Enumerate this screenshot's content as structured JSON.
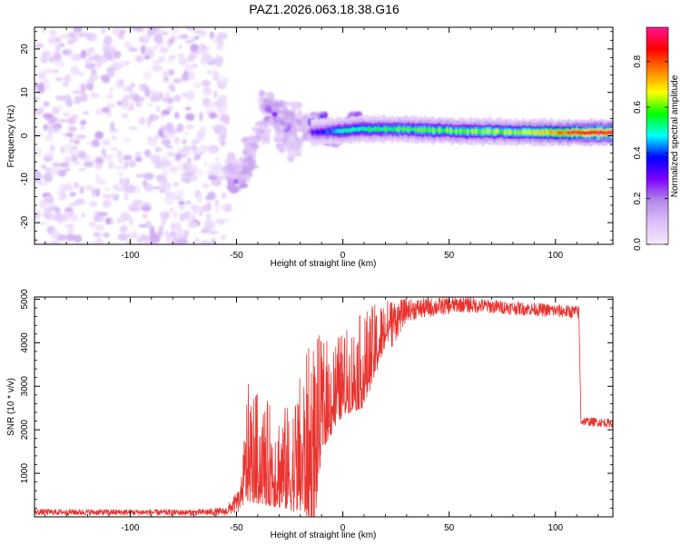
{
  "figure_title": "PAZ1.2026.063.18.38.G16",
  "chart_data": [
    {
      "type": "heatmap",
      "title": "PAZ1.2026.063.18.38.G16",
      "xlabel": "Height of straight line (km)",
      "ylabel": "Frequency (Hz)",
      "xlim": [
        -145,
        127
      ],
      "ylim": [
        -25,
        25
      ],
      "xticks": [
        -100,
        -50,
        0,
        50,
        100
      ],
      "yticks": [
        -20,
        -10,
        0,
        10,
        20
      ],
      "colorbar": {
        "label": "Normalized spectral amplitude",
        "range": [
          0,
          0.95
        ],
        "ticks": [
          0.0,
          0.2,
          0.4,
          0.6,
          0.8
        ],
        "tick_labels": [
          "0.0",
          "0.2",
          "0.4",
          "0.6",
          "0.8"
        ],
        "colors": [
          "#f5e8ff",
          "#dcc1f6",
          "#b48ae9",
          "#7f00ff",
          "#0000ff",
          "#00ffff",
          "#00ff00",
          "#ffff00",
          "#ff8000",
          "#ff0000",
          "#ff1493"
        ]
      },
      "noise_region": {
        "x_from": -145,
        "x_to": -58,
        "freq_from": -25,
        "freq_to": 25,
        "amplitude_range": [
          0.02,
          0.15
        ]
      },
      "transition_region": [
        {
          "x": -50,
          "f": -10.5,
          "a": 0.22
        },
        {
          "x": -46,
          "f": -8,
          "a": 0.16
        },
        {
          "x": -53,
          "f": -7,
          "a": 0.12
        },
        {
          "x": -44,
          "f": -5,
          "a": 0.14
        },
        {
          "x": -42,
          "f": -2,
          "a": 0.13
        },
        {
          "x": -38,
          "f": 1,
          "a": 0.12
        },
        {
          "x": -36,
          "f": 7.5,
          "a": 0.14
        },
        {
          "x": -32,
          "f": 5,
          "a": 0.26
        },
        {
          "x": -28,
          "f": 3,
          "a": 0.18
        },
        {
          "x": -26,
          "f": 1,
          "a": 0.22
        },
        {
          "x": -24,
          "f": 5,
          "a": 0.14
        },
        {
          "x": -20,
          "f": 3,
          "a": 0.16
        },
        {
          "x": -27,
          "f": -1,
          "a": 0.12
        },
        {
          "x": -22,
          "f": -3,
          "a": 0.09
        },
        {
          "x": -15,
          "f": 1,
          "a": 0.2
        },
        {
          "x": -11,
          "f": 2.5,
          "a": 0.36
        },
        {
          "x": -8,
          "f": 1,
          "a": 0.18
        },
        {
          "x": -5,
          "f": 0.5,
          "a": 0.3
        },
        {
          "x": 5,
          "f": 2.5,
          "a": 0.3
        }
      ],
      "carrier_ridge": {
        "freq": [
          [
            -15,
            0.8
          ],
          [
            0,
            1.2
          ],
          [
            10,
            1.6
          ],
          [
            30,
            1.5
          ],
          [
            60,
            1.0
          ],
          [
            90,
            0.8
          ],
          [
            127,
            0.7
          ]
        ],
        "peak_amplitude": [
          [
            -15,
            0.3
          ],
          [
            0,
            0.5
          ],
          [
            20,
            0.55
          ],
          [
            60,
            0.6
          ],
          [
            90,
            0.65
          ],
          [
            110,
            0.85
          ],
          [
            127,
            0.9
          ]
        ]
      }
    },
    {
      "type": "line",
      "xlabel": "Height of straight line (km)",
      "ylabel": "SNR (10 * v/v)",
      "xlim": [
        -145,
        127
      ],
      "ylim": [
        0,
        5050
      ],
      "xticks": [
        -100,
        -50,
        0,
        50,
        100
      ],
      "yticks": [
        1000,
        2000,
        3000,
        4000,
        5000
      ],
      "line_color": "#e8332f",
      "envelope": [
        {
          "x": -145,
          "mean": 110,
          "spread": 70
        },
        {
          "x": -70,
          "mean": 100,
          "spread": 70
        },
        {
          "x": -55,
          "mean": 120,
          "spread": 90
        },
        {
          "x": -48,
          "mean": 400,
          "spread": 300
        },
        {
          "x": -45,
          "mean": 1300,
          "spread": 1700
        },
        {
          "x": -35,
          "mean": 1100,
          "spread": 1500
        },
        {
          "x": -25,
          "mean": 1000,
          "spread": 1500
        },
        {
          "x": -13,
          "mean": 1500,
          "spread": 2800
        },
        {
          "x": -10,
          "mean": 2400,
          "spread": 1600
        },
        {
          "x": 0,
          "mean": 3000,
          "spread": 1200
        },
        {
          "x": 10,
          "mean": 3300,
          "spread": 1400
        },
        {
          "x": 20,
          "mean": 4300,
          "spread": 700
        },
        {
          "x": 30,
          "mean": 4750,
          "spread": 250
        },
        {
          "x": 55,
          "mean": 4880,
          "spread": 180
        },
        {
          "x": 80,
          "mean": 4800,
          "spread": 150
        },
        {
          "x": 111,
          "mean": 4700,
          "spread": 150
        },
        {
          "x": 112,
          "mean": 2200,
          "spread": 100
        },
        {
          "x": 127,
          "mean": 2150,
          "spread": 100
        }
      ]
    }
  ]
}
